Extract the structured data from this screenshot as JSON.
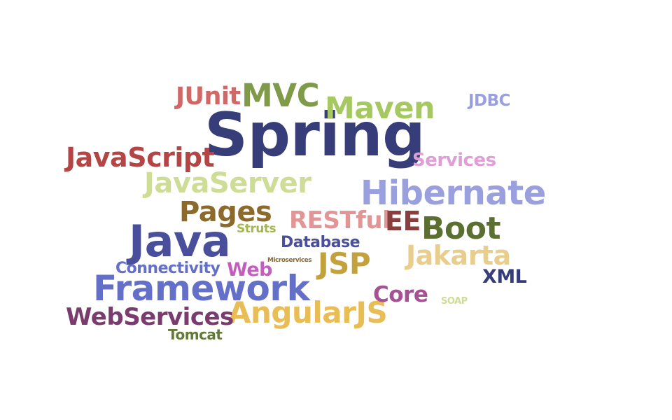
{
  "words": [
    {
      "text": "Spring",
      "color": "#363d79"
    },
    {
      "text": "Java",
      "color": "#4a4f9c"
    },
    {
      "text": "Framework",
      "color": "#6470c8"
    },
    {
      "text": "Hibernate",
      "color": "#9a9fde"
    },
    {
      "text": "MVC",
      "color": "#7f9b49"
    },
    {
      "text": "Maven",
      "color": "#a6c860"
    },
    {
      "text": "JUnit",
      "color": "#d06868"
    },
    {
      "text": "JavaScript",
      "color": "#b54545"
    },
    {
      "text": "JavaServer",
      "color": "#cedd96"
    },
    {
      "text": "Pages",
      "color": "#8b6a2b"
    },
    {
      "text": "RESTful",
      "color": "#e29595"
    },
    {
      "text": "EE",
      "color": "#8a3f3f"
    },
    {
      "text": "Boot",
      "color": "#5a6f30"
    },
    {
      "text": "Jakarta",
      "color": "#e8cd8c"
    },
    {
      "text": "JSP",
      "color": "#c3a23e"
    },
    {
      "text": "AngularJS",
      "color": "#e9bd55"
    },
    {
      "text": "WebServices",
      "color": "#7a3b6e"
    },
    {
      "text": "Services",
      "color": "#de9ed6"
    },
    {
      "text": "JDBC",
      "color": "#9a9fde"
    },
    {
      "text": "Database",
      "color": "#4a4f9c"
    },
    {
      "text": "Connectivity",
      "color": "#6470c8"
    },
    {
      "text": "Web",
      "color": "#c35ebf"
    },
    {
      "text": "Struts",
      "color": "#a6b64c"
    },
    {
      "text": "Microservices",
      "color": "#8b6a2b"
    },
    {
      "text": "XML",
      "color": "#363d79"
    },
    {
      "text": "Core",
      "color": "#a55194"
    },
    {
      "text": "SOAP",
      "color": "#cedd96"
    },
    {
      "text": "Tomcat",
      "color": "#637939"
    }
  ]
}
